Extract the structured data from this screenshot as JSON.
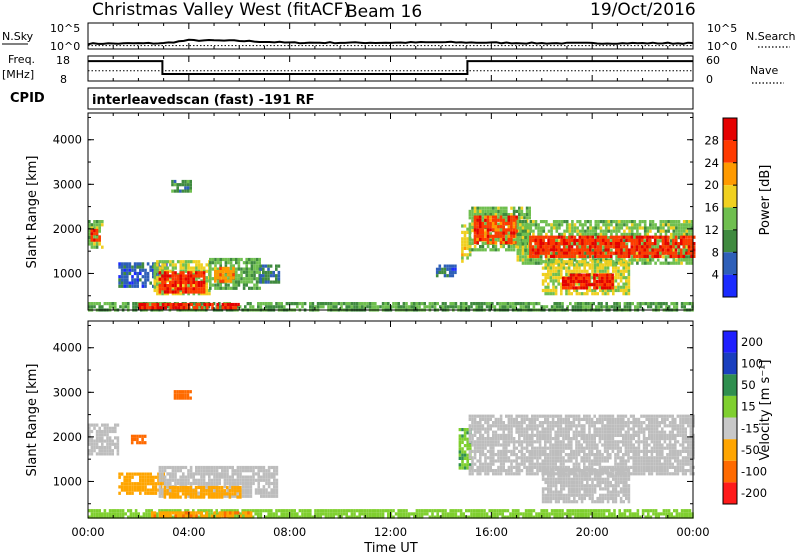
{
  "header": {
    "title": "Christmas Valley West (fitACF)",
    "beam": "Beam 16",
    "date": "19/Oct/2016"
  },
  "panels": {
    "nsky": {
      "label": "N.Sky",
      "top_tick": "10^5",
      "bottom_tick": "10^0",
      "right_label": "N.Search",
      "right_top": "10^5",
      "right_bottom": "10^0"
    },
    "freq": {
      "label": "Freq.",
      "unit": "[MHz]",
      "left_ticks": [
        "18",
        "8"
      ],
      "right_ticks": [
        "60",
        "0"
      ],
      "right_label": "Nave"
    },
    "cpid": {
      "label": "CPID",
      "text": "interleavedscan (fast) -191 RF"
    },
    "power": {
      "ylabel": "Slant Range [km]",
      "yticks": [
        "1000",
        "2000",
        "3000",
        "4000"
      ],
      "cbar_label": "Power [dB]",
      "cbar_ticks": [
        "4",
        "8",
        "12",
        "16",
        "20",
        "24",
        "28"
      ]
    },
    "velocity": {
      "ylabel": "Slant Range [km]",
      "yticks": [
        "1000",
        "2000",
        "3000",
        "4000"
      ],
      "cbar_label": "Velocity [m s⁻¹]",
      "cbar_ticks": [
        "-200",
        "-100",
        "-50",
        "-15",
        "15",
        "50",
        "100",
        "200"
      ]
    },
    "xaxis": {
      "label": "Time UT",
      "ticks": [
        "00:00",
        "04:00",
        "08:00",
        "12:00",
        "16:00",
        "20:00",
        "00:00"
      ]
    }
  },
  "chart_data": [
    {
      "type": "line",
      "title": "N.Sky / N.Search",
      "x_hours": [
        0,
        3,
        4,
        6,
        8,
        10,
        12,
        14,
        16,
        18,
        20,
        22,
        24
      ],
      "series": [
        {
          "name": "N.Sky",
          "values": [
            0.9,
            1.0,
            1.6,
            1.5,
            1.1,
            1.1,
            1.1,
            1.2,
            1.1,
            1.0,
            1.0,
            1.0,
            1.0
          ]
        },
        {
          "name": "N.Search",
          "values": [
            0.5,
            0.5,
            0.5,
            0.5,
            0.5,
            0.5,
            0.5,
            0.5,
            0.5,
            0.5,
            0.5,
            0.5,
            0.5
          ]
        }
      ],
      "ylim": [
        0,
        5
      ]
    },
    {
      "type": "line",
      "title": "Freq. / Nave",
      "x_hours": [
        0,
        2.95,
        2.95,
        15.05,
        15.05,
        24
      ],
      "series": [
        {
          "name": "Freq.",
          "values": [
            16.2,
            16.2,
            10.6,
            10.6,
            16.2,
            16.2
          ]
        },
        {
          "name": "Nave",
          "values": [
            24,
            24,
            24,
            24,
            24,
            24
          ]
        }
      ],
      "ylim_freq": [
        8,
        18
      ],
      "ylim_nave": [
        0,
        60
      ]
    },
    {
      "type": "heatmap",
      "title": "Power [dB]",
      "xlabel": "Time UT",
      "ylabel": "Slant Range [km]",
      "xlim_hours": [
        0,
        24
      ],
      "ylim_km": [
        180,
        4600
      ],
      "color_range_db": [
        0,
        32
      ],
      "regions": [
        {
          "t0": 0.0,
          "t1": 0.6,
          "r0": 1600,
          "r1": 2200,
          "power": 14
        },
        {
          "t0": 0.1,
          "t1": 0.5,
          "r0": 1750,
          "r1": 2000,
          "power": 27
        },
        {
          "t0": 1.2,
          "t1": 3.1,
          "r0": 700,
          "r1": 1250,
          "power": 6
        },
        {
          "t0": 2.6,
          "t1": 4.8,
          "r0": 550,
          "r1": 1300,
          "power": 16
        },
        {
          "t0": 2.8,
          "t1": 4.6,
          "r0": 600,
          "r1": 1050,
          "power": 27
        },
        {
          "t0": 4.8,
          "t1": 6.8,
          "r0": 700,
          "r1": 1350,
          "power": 13
        },
        {
          "t0": 5.0,
          "t1": 5.8,
          "r0": 850,
          "r1": 1150,
          "power": 22
        },
        {
          "t0": 6.8,
          "t1": 7.6,
          "r0": 800,
          "r1": 1200,
          "power": 8
        },
        {
          "t0": 0.0,
          "t1": 24.0,
          "r0": 200,
          "r1": 360,
          "power": 12
        },
        {
          "t0": 2.0,
          "t1": 6.0,
          "r0": 200,
          "r1": 340,
          "power": 28
        },
        {
          "t0": 3.3,
          "t1": 4.1,
          "r0": 2850,
          "r1": 3100,
          "power": 10
        },
        {
          "t0": 14.8,
          "t1": 15.2,
          "r0": 1300,
          "r1": 2100,
          "power": 18
        },
        {
          "t0": 13.8,
          "t1": 14.6,
          "r0": 950,
          "r1": 1200,
          "power": 6
        },
        {
          "t0": 15.1,
          "t1": 17.5,
          "r0": 1500,
          "r1": 2500,
          "power": 14
        },
        {
          "t0": 15.3,
          "t1": 17.0,
          "r0": 1700,
          "r1": 2300,
          "power": 26
        },
        {
          "t0": 17.0,
          "t1": 24.0,
          "r0": 1200,
          "r1": 2200,
          "power": 14
        },
        {
          "t0": 17.5,
          "t1": 24.0,
          "r0": 1350,
          "r1": 1850,
          "power": 27
        },
        {
          "t0": 18.0,
          "t1": 21.5,
          "r0": 550,
          "r1": 1300,
          "power": 17
        },
        {
          "t0": 18.8,
          "t1": 20.8,
          "r0": 650,
          "r1": 1000,
          "power": 28
        }
      ]
    },
    {
      "type": "heatmap",
      "title": "Velocity [m s⁻¹]",
      "xlabel": "Time UT",
      "ylabel": "Slant Range [km]",
      "xlim_hours": [
        0,
        24
      ],
      "ylim_km": [
        180,
        4600
      ],
      "color_levels": [
        -200,
        -100,
        -50,
        -15,
        15,
        50,
        100,
        200
      ],
      "regions": [
        {
          "t0": 0.0,
          "t1": 1.2,
          "r0": 1600,
          "r1": 2300,
          "velocity": 0
        },
        {
          "t0": 1.7,
          "t1": 2.3,
          "r0": 1850,
          "r1": 2050,
          "velocity": -80
        },
        {
          "t0": 1.2,
          "t1": 3.0,
          "r0": 750,
          "r1": 1200,
          "velocity": -30
        },
        {
          "t0": 2.8,
          "t1": 7.5,
          "r0": 650,
          "r1": 1350,
          "velocity": 0
        },
        {
          "t0": 3.0,
          "t1": 6.0,
          "r0": 650,
          "r1": 900,
          "velocity": -30
        },
        {
          "t0": 0.0,
          "t1": 24.0,
          "r0": 200,
          "r1": 380,
          "velocity": 30
        },
        {
          "t0": 2.5,
          "t1": 6.5,
          "r0": 200,
          "r1": 330,
          "velocity": -40
        },
        {
          "t0": 3.4,
          "t1": 4.1,
          "r0": 2850,
          "r1": 3050,
          "velocity": -70
        },
        {
          "t0": 14.7,
          "t1": 15.2,
          "r0": 1300,
          "r1": 2200,
          "velocity": 40
        },
        {
          "t0": 15.1,
          "t1": 24.0,
          "r0": 1200,
          "r1": 2500,
          "velocity": 0
        },
        {
          "t0": 18.0,
          "t1": 21.5,
          "r0": 550,
          "r1": 1300,
          "velocity": 0
        }
      ]
    }
  ],
  "colors": {
    "power_scale": [
      "#1b2bff",
      "#2e5fb8",
      "#3f8a3f",
      "#6fbf4f",
      "#f0d020",
      "#ff9a00",
      "#ff3a00",
      "#e50000"
    ],
    "velocity_scale": [
      "#ff1a1a",
      "#ff6a00",
      "#ffa500",
      "#c8c8c8",
      "#7fcf2f",
      "#2f8f4f",
      "#1a3fbf",
      "#2020ff"
    ],
    "ground_scatter": "#bdbdbd"
  }
}
